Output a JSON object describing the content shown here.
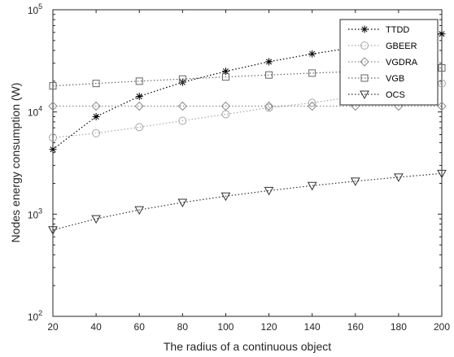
{
  "chart_data": {
    "type": "line",
    "title": "",
    "xlabel": "The radius of a continuous object",
    "ylabel": "Nodes energy consumption (W)",
    "xlim": [
      20,
      200
    ],
    "ylim": [
      100,
      100000
    ],
    "yscale": "log",
    "grid": false,
    "legend_position": "top-right",
    "x": [
      20,
      40,
      60,
      80,
      100,
      120,
      140,
      160,
      180,
      200
    ],
    "x_ticks": [
      "20",
      "40",
      "60",
      "80",
      "100",
      "120",
      "140",
      "160",
      "180",
      "200"
    ],
    "y_ticks": [
      {
        "value": 100,
        "base": "10",
        "exp": "2"
      },
      {
        "value": 1000,
        "base": "10",
        "exp": "3"
      },
      {
        "value": 10000,
        "base": "10",
        "exp": "4"
      },
      {
        "value": 100000,
        "base": "10",
        "exp": "5"
      }
    ],
    "series": [
      {
        "name": "TTDD",
        "marker": "asterisk",
        "color": "#000000",
        "x": [
          20,
          40,
          60,
          80,
          100,
          120,
          140,
          200
        ],
        "values": [
          4300,
          9000,
          14200,
          19500,
          25000,
          31000,
          37000,
          58000
        ]
      },
      {
        "name": "GBEER",
        "marker": "circle",
        "color": "#a6a6a6",
        "x": [
          20,
          40,
          60,
          80,
          100,
          120,
          140,
          200
        ],
        "values": [
          5600,
          6200,
          7100,
          8200,
          9500,
          11000,
          12300,
          19000
        ]
      },
      {
        "name": "VGDRA",
        "marker": "diamond",
        "color": "#8c8c8c",
        "x": [
          20,
          40,
          60,
          80,
          100,
          120,
          140,
          160,
          180,
          200
        ],
        "values": [
          11400,
          11400,
          11400,
          11400,
          11400,
          11400,
          11400,
          11400,
          11400,
          11400
        ]
      },
      {
        "name": "VGB",
        "marker": "square",
        "color": "#666666",
        "x": [
          20,
          40,
          60,
          80,
          100,
          120,
          140,
          200
        ],
        "values": [
          18000,
          19000,
          20000,
          21000,
          22000,
          23000,
          24000,
          27000
        ]
      },
      {
        "name": "OCS",
        "marker": "triangle-down",
        "color": "#333333",
        "x": [
          20,
          40,
          60,
          80,
          100,
          120,
          140,
          160,
          180,
          200
        ],
        "values": [
          700,
          900,
          1100,
          1300,
          1500,
          1700,
          1900,
          2100,
          2300,
          2500
        ]
      }
    ]
  }
}
